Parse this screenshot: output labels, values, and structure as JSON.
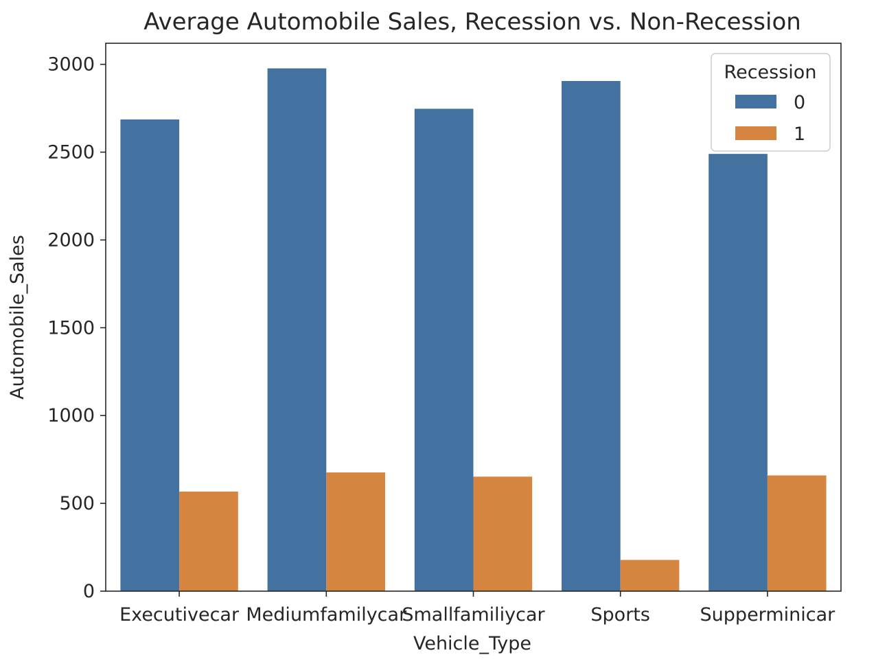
{
  "chart_data": {
    "type": "bar",
    "title": "Average Automobile Sales, Recession vs. Non-Recession",
    "xlabel": "Vehicle_Type",
    "ylabel": "Automobile_Sales",
    "ylim": [
      0,
      3120
    ],
    "yticks": [
      0,
      500,
      1000,
      1500,
      2000,
      2500,
      3000
    ],
    "grid": false,
    "categories": [
      "Executivecar",
      "Mediumfamilycar",
      "Smallfamiliycar",
      "Sports",
      "Supperminicar"
    ],
    "series": [
      {
        "name": "0",
        "color": "#4472a0",
        "values": [
          2686,
          2977,
          2747,
          2905,
          2490
        ]
      },
      {
        "name": "1",
        "color": "#d58540",
        "values": [
          567,
          676,
          652,
          178,
          659
        ]
      }
    ],
    "legend": {
      "title": "Recession",
      "placement": "top-right"
    }
  }
}
